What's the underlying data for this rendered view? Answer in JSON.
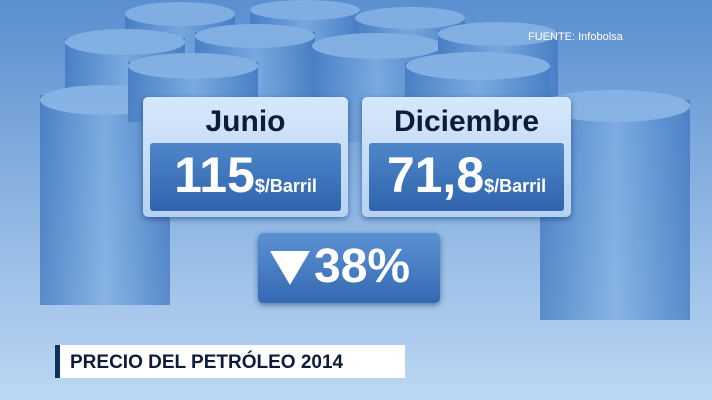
{
  "source": "FUENTE: Infobolsa",
  "cards": [
    {
      "label": "Junio",
      "value": "115",
      "unit": "$/Barril"
    },
    {
      "label": "Diciembre",
      "value": "71,8",
      "unit": "$/Barril"
    }
  ],
  "change": {
    "value": "38%"
  },
  "caption": "PRECIO DEL PETRÓLEO 2014"
}
